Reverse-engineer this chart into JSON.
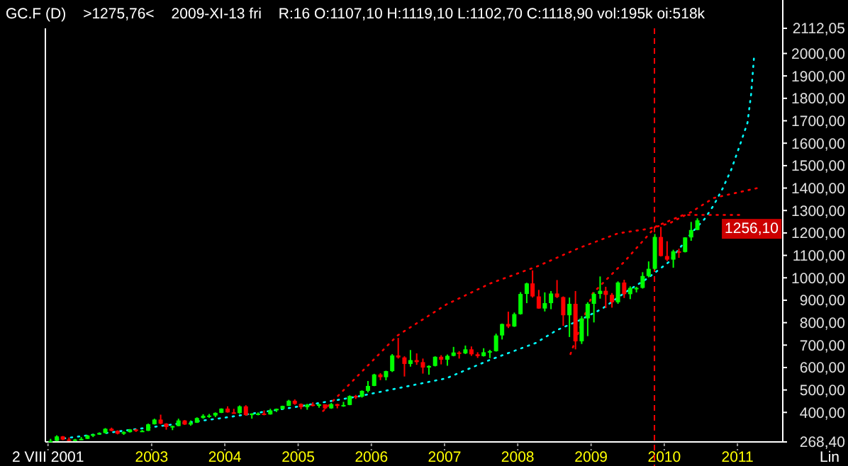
{
  "chart_data": {
    "type": "candlestick",
    "title": "GC.F (D)",
    "annotations": [
      ">1275,76<",
      "2009-XI-13 fri",
      "R:16 O:1107,10 H:1119,10 L:1102,70 C:1118,90 vol:195k oi:518k",
      "Lin",
      "1256,10"
    ],
    "xlim": [
      "2001-07-20",
      "2011-08-15"
    ],
    "xticks": [
      {
        "value": "2001-08-02",
        "label": "2 VIII 2001"
      },
      {
        "value": "2003-01-01",
        "label": "2003"
      },
      {
        "value": "2004-01-01",
        "label": "2004"
      },
      {
        "value": "2005-01-01",
        "label": "2005"
      },
      {
        "value": "2006-01-01",
        "label": "2006"
      },
      {
        "value": "2007-01-01",
        "label": "2007"
      },
      {
        "value": "2008-01-01",
        "label": "2008"
      },
      {
        "value": "2009-01-01",
        "label": "2009"
      },
      {
        "value": "2010-01-01",
        "label": "2010"
      },
      {
        "value": "2011-01-01",
        "label": "2011"
      }
    ],
    "ylim": [
      268.4,
      2112.05
    ],
    "yticks": [
      {
        "value": 268.4,
        "label": "268,40"
      },
      {
        "value": 400,
        "label": "400,00"
      },
      {
        "value": 500,
        "label": "500,00"
      },
      {
        "value": 600,
        "label": "600,00"
      },
      {
        "value": 700,
        "label": "700,00"
      },
      {
        "value": 800,
        "label": "800,00"
      },
      {
        "value": 900,
        "label": "900,00"
      },
      {
        "value": 1000,
        "label": "1000,00"
      },
      {
        "value": 1100,
        "label": "1100,00"
      },
      {
        "value": 1200,
        "label": "1200,00"
      },
      {
        "value": 1300,
        "label": "1300,00"
      },
      {
        "value": 1400,
        "label": "1400,00"
      },
      {
        "value": 1500,
        "label": "1500,00"
      },
      {
        "value": 1600,
        "label": "1600,00"
      },
      {
        "value": 1700,
        "label": "1700,00"
      },
      {
        "value": 1800,
        "label": "1800,00"
      },
      {
        "value": 1900,
        "label": "1900,00"
      },
      {
        "value": 2000,
        "label": "2000,00"
      },
      {
        "value": 2112.05,
        "label": "2112,05"
      }
    ],
    "ref_lines": [
      {
        "axis": "x",
        "value": "2009-11-13",
        "color": "#ff0000",
        "line_style": "dashed"
      }
    ],
    "x": [
      "2001-08-15",
      "2001-09-15",
      "2001-10-15",
      "2001-11-15",
      "2001-12-15",
      "2002-01-15",
      "2002-02-15",
      "2002-03-15",
      "2002-04-15",
      "2002-05-15",
      "2002-06-15",
      "2002-07-15",
      "2002-08-15",
      "2002-09-15",
      "2002-10-15",
      "2002-11-15",
      "2002-12-15",
      "2003-01-15",
      "2003-02-15",
      "2003-03-15",
      "2003-04-15",
      "2003-05-15",
      "2003-06-15",
      "2003-07-15",
      "2003-08-15",
      "2003-09-15",
      "2003-10-15",
      "2003-11-15",
      "2003-12-15",
      "2004-01-15",
      "2004-02-15",
      "2004-03-15",
      "2004-04-15",
      "2004-05-15",
      "2004-06-15",
      "2004-07-15",
      "2004-08-15",
      "2004-09-15",
      "2004-10-15",
      "2004-11-15",
      "2004-12-15",
      "2005-01-15",
      "2005-02-15",
      "2005-03-15",
      "2005-04-15",
      "2005-05-15",
      "2005-06-15",
      "2005-07-15",
      "2005-08-15",
      "2005-09-15",
      "2005-10-15",
      "2005-11-15",
      "2005-12-15",
      "2006-01-15",
      "2006-02-15",
      "2006-03-15",
      "2006-04-15",
      "2006-05-15",
      "2006-06-15",
      "2006-07-15",
      "2006-08-15",
      "2006-09-15",
      "2006-10-15",
      "2006-11-15",
      "2006-12-15",
      "2007-01-15",
      "2007-02-15",
      "2007-03-15",
      "2007-04-15",
      "2007-05-15",
      "2007-06-15",
      "2007-07-15",
      "2007-08-15",
      "2007-09-15",
      "2007-10-15",
      "2007-11-15",
      "2007-12-15",
      "2008-01-15",
      "2008-02-15",
      "2008-03-15",
      "2008-04-15",
      "2008-05-15",
      "2008-06-15",
      "2008-07-15",
      "2008-08-15",
      "2008-09-15",
      "2008-10-15",
      "2008-11-15",
      "2008-12-15",
      "2009-01-15",
      "2009-02-15",
      "2009-03-15",
      "2009-04-15",
      "2009-05-15",
      "2009-06-15",
      "2009-07-15",
      "2009-08-15",
      "2009-09-15",
      "2009-10-15",
      "2009-11-15",
      "2009-12-15",
      "2010-01-15",
      "2010-02-15",
      "2010-03-15",
      "2010-04-15",
      "2010-05-15",
      "2010-06-15"
    ],
    "ohlc": [
      [
        270,
        282,
        268.4,
        273
      ],
      [
        273,
        298,
        271,
        293
      ],
      [
        293,
        295,
        276,
        279
      ],
      [
        279,
        288,
        272,
        275
      ],
      [
        275,
        282,
        271,
        279
      ],
      [
        279,
        290,
        277,
        282
      ],
      [
        282,
        300,
        281,
        297
      ],
      [
        297,
        304,
        290,
        302
      ],
      [
        302,
        311,
        300,
        308
      ],
      [
        308,
        330,
        306,
        327
      ],
      [
        327,
        332,
        316,
        318
      ],
      [
        318,
        320,
        302,
        305
      ],
      [
        305,
        316,
        300,
        312
      ],
      [
        312,
        326,
        310,
        324
      ],
      [
        324,
        326,
        313,
        317
      ],
      [
        317,
        322,
        315,
        318
      ],
      [
        318,
        350,
        317,
        347
      ],
      [
        347,
        372,
        346,
        368
      ],
      [
        368,
        390,
        347,
        350
      ],
      [
        350,
        352,
        323,
        335
      ],
      [
        335,
        341,
        321,
        339
      ],
      [
        339,
        372,
        338,
        364
      ],
      [
        364,
        366,
        344,
        346
      ],
      [
        346,
        364,
        341,
        354
      ],
      [
        354,
        378,
        353,
        375
      ],
      [
        375,
        392,
        372,
        385
      ],
      [
        385,
        393,
        376,
        386
      ],
      [
        386,
        400,
        379,
        398
      ],
      [
        398,
        418,
        397,
        417
      ],
      [
        417,
        427,
        399,
        400
      ],
      [
        400,
        416,
        394,
        397
      ],
      [
        397,
        431,
        394,
        427
      ],
      [
        427,
        432,
        385,
        388
      ],
      [
        388,
        396,
        372,
        395
      ],
      [
        395,
        400,
        387,
        395
      ],
      [
        395,
        409,
        387,
        391
      ],
      [
        391,
        416,
        390,
        409
      ],
      [
        409,
        417,
        402,
        416
      ],
      [
        416,
        430,
        413,
        429
      ],
      [
        429,
        456,
        428,
        452
      ],
      [
        452,
        458,
        434,
        438
      ],
      [
        438,
        440,
        414,
        423
      ],
      [
        423,
        438,
        412,
        435
      ],
      [
        435,
        445,
        427,
        429
      ],
      [
        429,
        438,
        421,
        436
      ],
      [
        436,
        436,
        414,
        418
      ],
      [
        418,
        442,
        416,
        437
      ],
      [
        437,
        439,
        418,
        429
      ],
      [
        429,
        447,
        425,
        433
      ],
      [
        433,
        476,
        432,
        473
      ],
      [
        473,
        478,
        460,
        470
      ],
      [
        470,
        498,
        466,
        496
      ],
      [
        496,
        540,
        489,
        518
      ],
      [
        518,
        572,
        517,
        569
      ],
      [
        569,
        575,
        544,
        557
      ],
      [
        557,
        586,
        543,
        584
      ],
      [
        584,
        660,
        580,
        654
      ],
      [
        654,
        732,
        640,
        645
      ],
      [
        645,
        650,
        560,
        616
      ],
      [
        616,
        678,
        604,
        633
      ],
      [
        633,
        663,
        612,
        624
      ],
      [
        624,
        640,
        573,
        600
      ],
      [
        600,
        610,
        568,
        607
      ],
      [
        607,
        650,
        605,
        648
      ],
      [
        648,
        655,
        614,
        635
      ],
      [
        635,
        658,
        608,
        652
      ],
      [
        652,
        692,
        650,
        667
      ],
      [
        667,
        673,
        640,
        663
      ],
      [
        663,
        698,
        660,
        681
      ],
      [
        681,
        694,
        652,
        659
      ],
      [
        659,
        668,
        643,
        651
      ],
      [
        651,
        686,
        649,
        668
      ],
      [
        668,
        679,
        642,
        673
      ],
      [
        673,
        751,
        671,
        743
      ],
      [
        743,
        796,
        725,
        794
      ],
      [
        794,
        849,
        776,
        783
      ],
      [
        783,
        845,
        781,
        838
      ],
      [
        838,
        936,
        836,
        928
      ],
      [
        928,
        978,
        887,
        975
      ],
      [
        975,
        1033,
        912,
        917
      ],
      [
        917,
        946,
        862,
        863
      ],
      [
        863,
        935,
        850,
        887
      ],
      [
        887,
        941,
        860,
        930
      ],
      [
        930,
        990,
        910,
        914
      ],
      [
        914,
        917,
        786,
        833
      ],
      [
        833,
        912,
        736,
        884
      ],
      [
        884,
        941,
        681,
        717
      ],
      [
        717,
        829,
        705,
        819
      ],
      [
        819,
        891,
        740,
        884
      ],
      [
        884,
        935,
        801,
        928
      ],
      [
        928,
        1006,
        907,
        942
      ],
      [
        942,
        960,
        865,
        924
      ],
      [
        924,
        932,
        867,
        891
      ],
      [
        891,
        984,
        884,
        979
      ],
      [
        979,
        991,
        910,
        927
      ],
      [
        927,
        962,
        905,
        955
      ],
      [
        955,
        960,
        935,
        955
      ],
      [
        955,
        1025,
        952,
        1008
      ],
      [
        1008,
        1073,
        1002,
        1040
      ],
      [
        1040,
        1195,
        1036,
        1182
      ],
      [
        1182,
        1227,
        1095,
        1097
      ],
      [
        1097,
        1163,
        1075,
        1081
      ],
      [
        1081,
        1125,
        1045,
        1118
      ],
      [
        1118,
        1130,
        1089,
        1115
      ],
      [
        1115,
        1181,
        1113,
        1180
      ],
      [
        1180,
        1249,
        1165,
        1213
      ],
      [
        1213,
        1265,
        1212,
        1256.1
      ]
    ],
    "series": [
      {
        "type": "line",
        "color": "#00ffff",
        "line_style": "dotted",
        "x": [
          "2001-09-15",
          "2002-10-05",
          "2003-12-20",
          "2004-11-15",
          "2005-10-20",
          "2007-01-10",
          "2007-08-15",
          "2008-04-01",
          "2008-07-15",
          "2008-11-05",
          "2009-02-25",
          "2009-06-15",
          "2009-10-05",
          "2010-01-25",
          "2010-05-15",
          "2010-07-20",
          "2010-09-05",
          "2010-10-20",
          "2010-12-01",
          "2011-01-15",
          "2011-02-20",
          "2011-03-10",
          "2011-03-25"
        ],
        "values": [
          280,
          324,
          375,
          419,
          470,
          552,
          634,
          710,
          767,
          811,
          862,
          932,
          995,
          1071,
          1198,
          1261,
          1324,
          1400,
          1482,
          1596,
          1691,
          1818,
          1989
        ]
      },
      {
        "type": "line",
        "color": "#ff0000",
        "line_style": "dotted",
        "x": [
          "2005-05-05",
          "2006-05-10",
          "2007-01-10",
          "2007-08-20",
          "2008-04-10",
          "2008-11-05",
          "2009-05-15",
          "2009-10-05",
          "2010-01-25",
          "2010-05-15",
          "2010-09-05",
          "2011-04-10"
        ],
        "values": [
          406,
          742,
          881,
          976,
          1052,
          1134,
          1198,
          1217,
          1242,
          1293,
          1356,
          1400
        ]
      },
      {
        "type": "line",
        "color": "#ff0000",
        "line_style": "dotted",
        "x": [
          "2008-09-20",
          "2009-01-10",
          "2009-06-15",
          "2009-11-20",
          "2010-04-05",
          "2011-02-05"
        ],
        "values": [
          660,
          932,
          1071,
          1229,
          1280,
          1280
        ]
      }
    ]
  }
}
